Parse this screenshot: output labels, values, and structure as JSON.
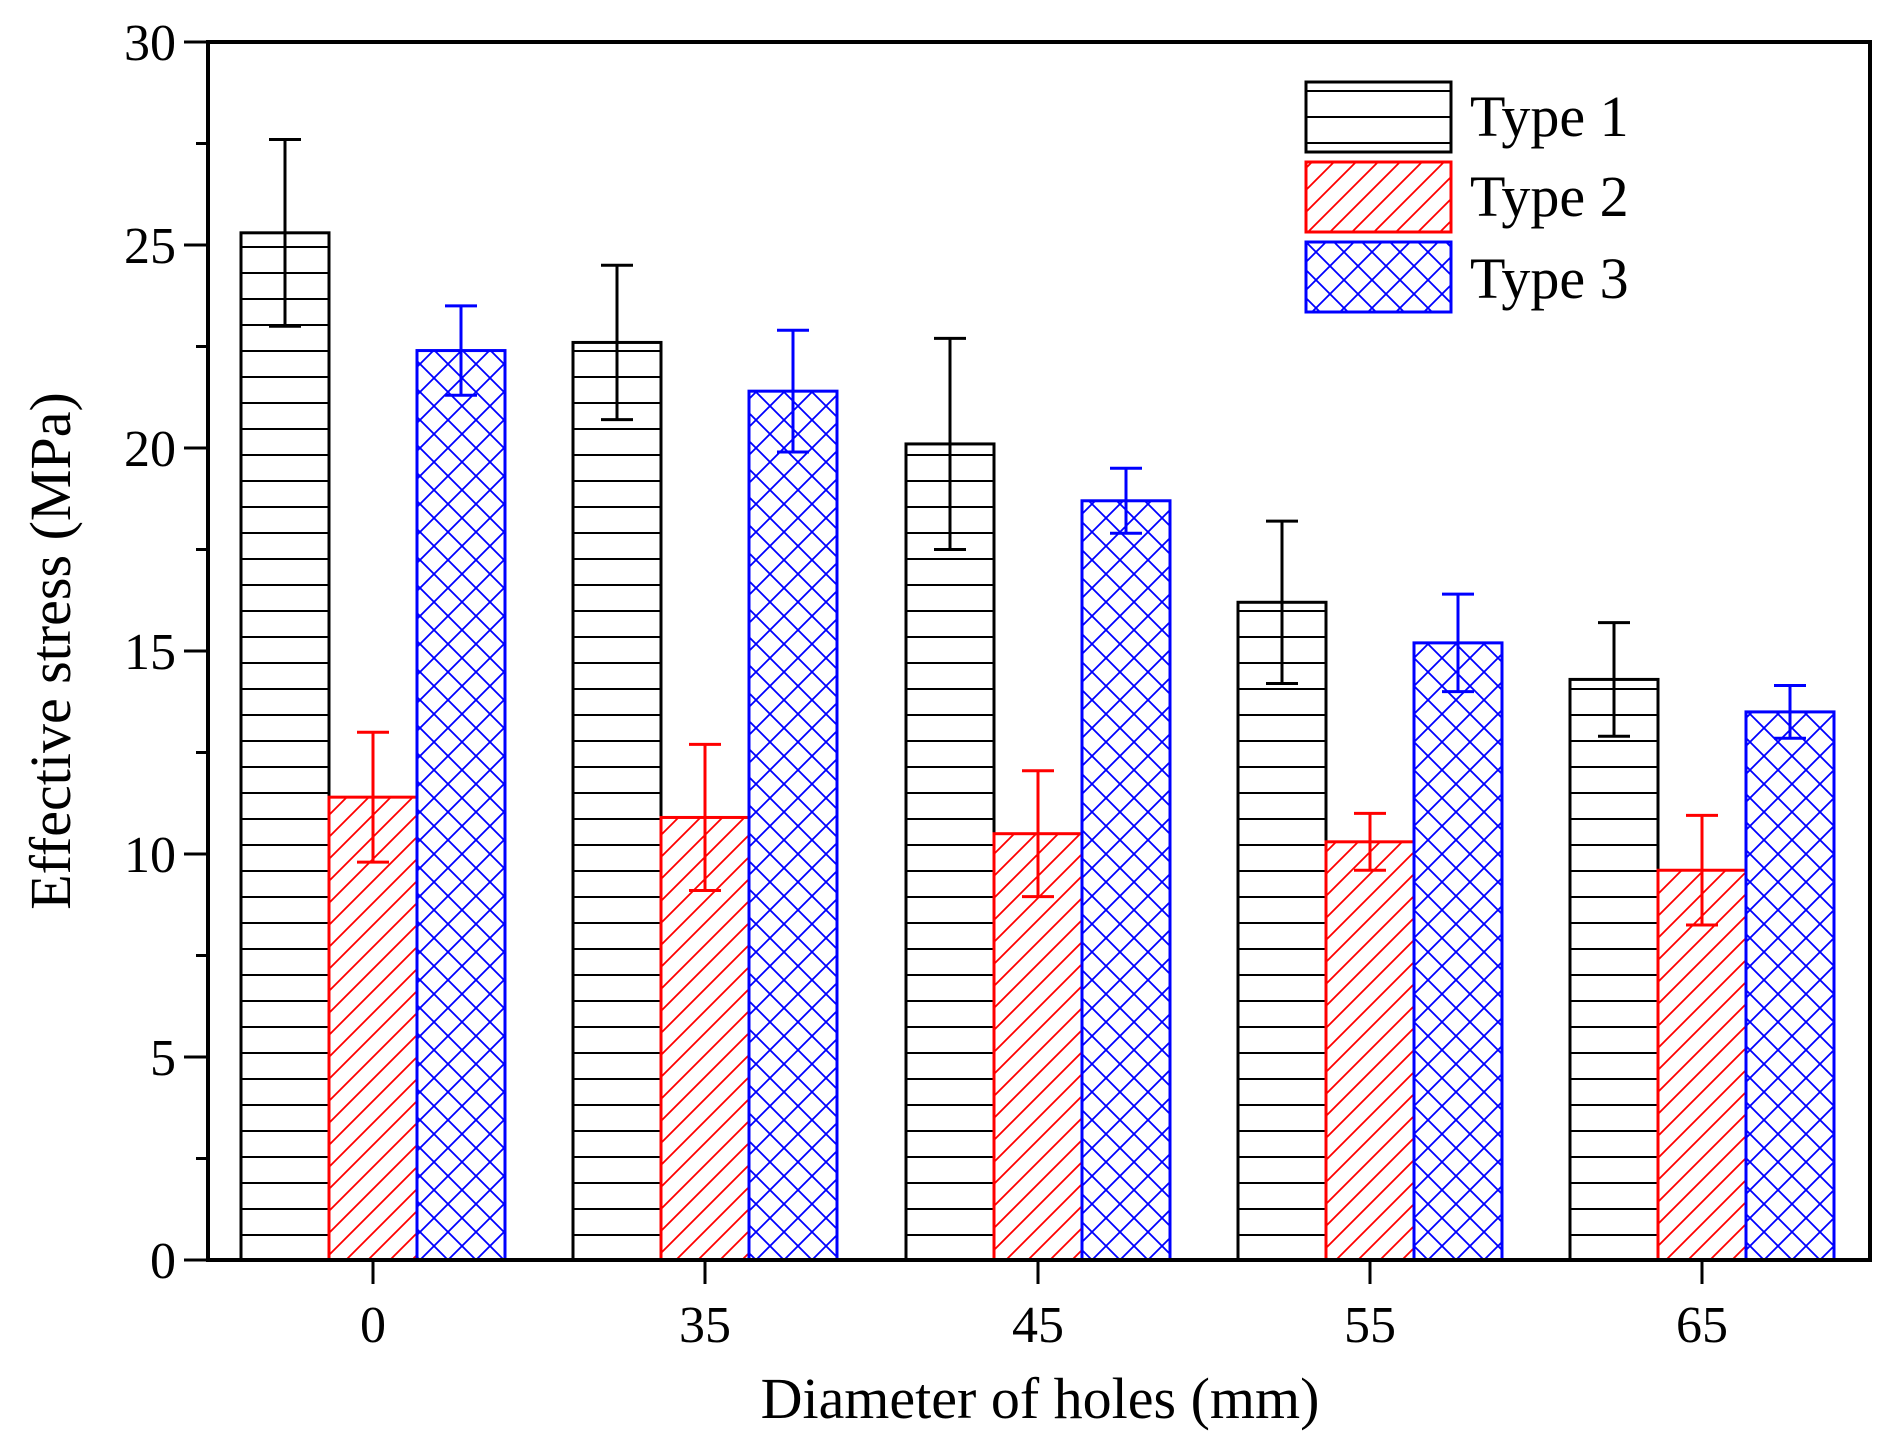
{
  "chart_data": {
    "type": "bar",
    "title": "",
    "xlabel": "Diameter of holes (mm)",
    "ylabel": "Effective stress (MPa)",
    "categories": [
      "0",
      "35",
      "45",
      "55",
      "65"
    ],
    "ylim": [
      0,
      30
    ],
    "yticks": [
      0,
      5,
      10,
      15,
      20,
      25,
      30
    ],
    "grid": false,
    "legend_position": "top-right",
    "series": [
      {
        "name": "Type 1",
        "color": "#000000",
        "pattern": "horizontal-lines",
        "values": [
          25.3,
          22.6,
          20.1,
          16.2,
          14.3
        ],
        "error": [
          2.3,
          1.9,
          2.6,
          2.0,
          1.4
        ]
      },
      {
        "name": "Type 2",
        "color": "#ff0000",
        "pattern": "diagonal-lines",
        "values": [
          11.4,
          10.9,
          10.5,
          10.3,
          9.6
        ],
        "error": [
          1.6,
          1.8,
          1.55,
          0.7,
          1.35
        ]
      },
      {
        "name": "Type 3",
        "color": "#0000ff",
        "pattern": "crosshatch",
        "values": [
          22.4,
          21.4,
          18.7,
          15.2,
          13.5
        ],
        "error": [
          1.1,
          1.5,
          0.8,
          1.2,
          0.65
        ]
      }
    ]
  }
}
